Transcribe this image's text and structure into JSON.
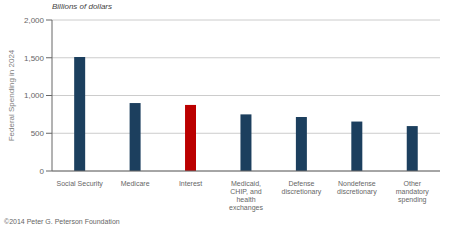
{
  "chart_data": {
    "type": "bar",
    "categories": [
      "Social Security",
      "Medicare",
      "Interest",
      "Medicaid,\nCHIP, and\nhealth\nexchanges",
      "Defense\ndiscretionary",
      "Nondefense\ndiscretionary",
      "Other\nmandatory\nspending"
    ],
    "values": [
      1510,
      900,
      875,
      750,
      715,
      655,
      595
    ],
    "colors": [
      "#1c3f5e",
      "#1c3f5e",
      "#bb0000",
      "#1c3f5e",
      "#1c3f5e",
      "#1c3f5e",
      "#1c3f5e"
    ],
    "ylabel": "Federal Spending in 2024",
    "ylim": [
      0,
      2000
    ],
    "yticks": [
      0,
      500,
      {
        "value": 1000,
        "label": "1,000"
      },
      {
        "value": 1500,
        "label": "1,500"
      },
      {
        "value": 2000,
        "label": "2,000"
      }
    ],
    "grid": true,
    "annotations": [
      "Billions of dollars",
      "©2014 Peter G. Peterson Foundation"
    ]
  }
}
